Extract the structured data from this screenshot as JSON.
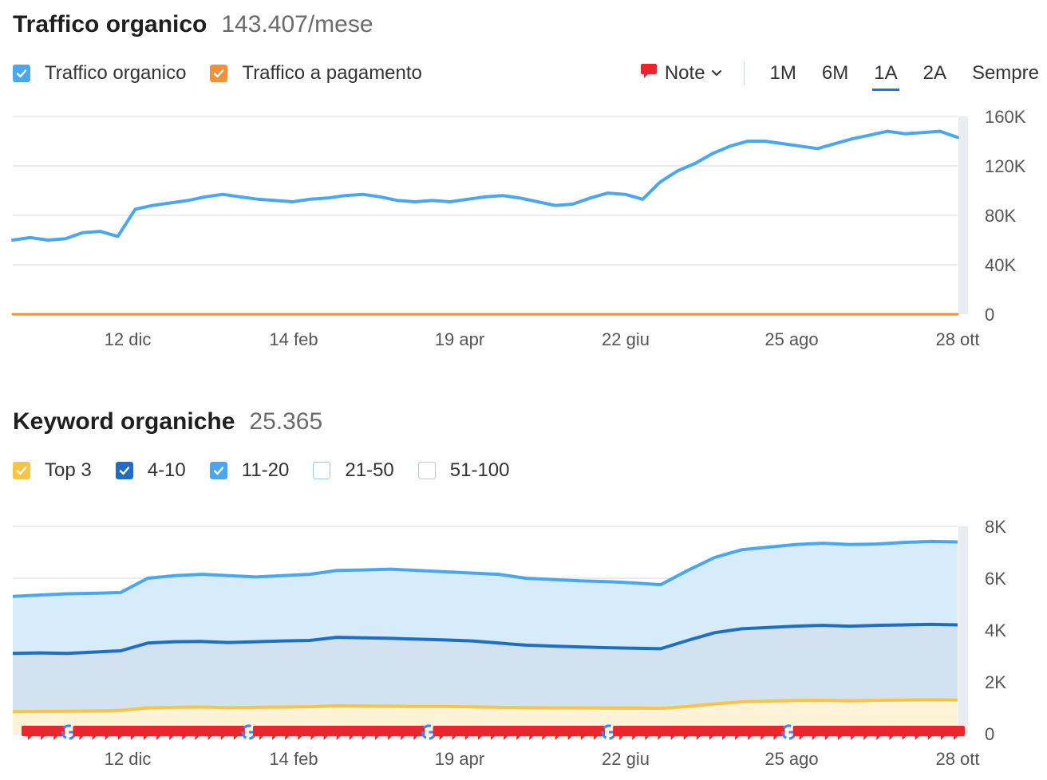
{
  "traffic": {
    "title": "Traffico organico",
    "value": "143.407/mese",
    "legend": [
      {
        "label": "Traffico organico",
        "checked": true,
        "color": "#4aa7ef"
      },
      {
        "label": "Traffico a pagamento",
        "checked": true,
        "color": "#f2913c"
      }
    ],
    "toolbar": {
      "note_label": "Note",
      "periods": [
        "1M",
        "6M",
        "1A",
        "2A",
        "Sempre"
      ],
      "active_period": "1A"
    }
  },
  "keywords": {
    "title": "Keyword organiche",
    "value": "25.365",
    "legend": [
      {
        "label": "Top 3",
        "checked": true,
        "color": "#f7c546"
      },
      {
        "label": "4-10",
        "checked": true,
        "color": "#1d6fc4"
      },
      {
        "label": "11-20",
        "checked": true,
        "color": "#4aa7ef"
      },
      {
        "label": "21-50",
        "checked": false,
        "color": "#b9d7f2"
      },
      {
        "label": "51-100",
        "checked": false,
        "color": "#c8cdd2"
      }
    ]
  },
  "chart_data": [
    {
      "type": "line",
      "title": "Traffico organico",
      "x_ticks": [
        "12 dic",
        "14 feb",
        "19 apr",
        "22 giu",
        "25 ago",
        "28 ott"
      ],
      "y_ticks": [
        "160K",
        "120K",
        "80K",
        "40K",
        "0"
      ],
      "ylim": [
        0,
        160000
      ],
      "grid": true,
      "series": [
        {
          "name": "Traffico organico",
          "color": "#4aa7ef",
          "values": [
            60000,
            62000,
            60000,
            61000,
            66000,
            67000,
            63000,
            85000,
            88000,
            90000,
            92000,
            95000,
            97000,
            95000,
            93000,
            92000,
            91000,
            93000,
            94000,
            96000,
            97000,
            95000,
            92000,
            91000,
            92000,
            91000,
            93000,
            95000,
            96000,
            94000,
            91000,
            88000,
            89000,
            94000,
            98000,
            97000,
            93000,
            107000,
            116000,
            122000,
            130000,
            136000,
            140000,
            140000,
            138000,
            136000,
            134000,
            138000,
            142000,
            145000,
            148000,
            146000,
            147000,
            148000,
            143000
          ]
        },
        {
          "name": "Traffico a pagamento",
          "color": "#f2913c",
          "values": [
            0,
            0,
            0,
            0,
            0,
            0,
            0,
            0,
            0,
            0,
            0,
            0,
            0,
            0,
            0,
            0,
            0,
            0,
            0,
            0,
            0,
            0,
            0,
            0,
            0,
            0,
            0,
            0,
            0,
            0,
            0,
            0,
            0,
            0,
            0,
            0,
            0,
            0,
            0,
            0,
            0,
            0,
            0,
            0,
            0,
            0,
            0,
            0,
            0,
            0,
            0,
            0,
            0,
            0,
            0
          ]
        }
      ]
    },
    {
      "type": "area",
      "title": "Keyword organiche",
      "x_ticks": [
        "12 dic",
        "14 feb",
        "19 apr",
        "22 giu",
        "25 ago",
        "28 ott"
      ],
      "y_ticks": [
        "8K",
        "6K",
        "4K",
        "2K",
        "0"
      ],
      "ylim": [
        0,
        8000
      ],
      "grid": true,
      "series": [
        {
          "name": "11-20",
          "color": "#4aa7ef",
          "values": [
            5300,
            5350,
            5400,
            5420,
            5450,
            6000,
            6100,
            6150,
            6100,
            6050,
            6100,
            6150,
            6300,
            6320,
            6350,
            6300,
            6250,
            6200,
            6150,
            6000,
            5950,
            5900,
            5870,
            5820,
            5750,
            6300,
            6800,
            7100,
            7200,
            7300,
            7350,
            7300,
            7320,
            7380,
            7420,
            7400
          ]
        },
        {
          "name": "4-10",
          "color": "#1d6fc4",
          "values": [
            3100,
            3120,
            3100,
            3150,
            3200,
            3500,
            3550,
            3560,
            3520,
            3550,
            3580,
            3600,
            3720,
            3700,
            3680,
            3650,
            3620,
            3580,
            3500,
            3420,
            3380,
            3350,
            3320,
            3300,
            3280,
            3600,
            3900,
            4050,
            4100,
            4150,
            4180,
            4150,
            4180,
            4200,
            4220,
            4200
          ]
        },
        {
          "name": "Top 3",
          "color": "#f7c546",
          "values": [
            850,
            860,
            870,
            880,
            900,
            1000,
            1020,
            1030,
            1010,
            1020,
            1030,
            1040,
            1080,
            1070,
            1060,
            1050,
            1050,
            1040,
            1020,
            1010,
            1000,
            1000,
            990,
            990,
            980,
            1050,
            1150,
            1230,
            1260,
            1280,
            1290,
            1270,
            1290,
            1300,
            1310,
            1300
          ]
        }
      ]
    }
  ],
  "markers": {
    "note_count": 68,
    "google_count": 5
  }
}
